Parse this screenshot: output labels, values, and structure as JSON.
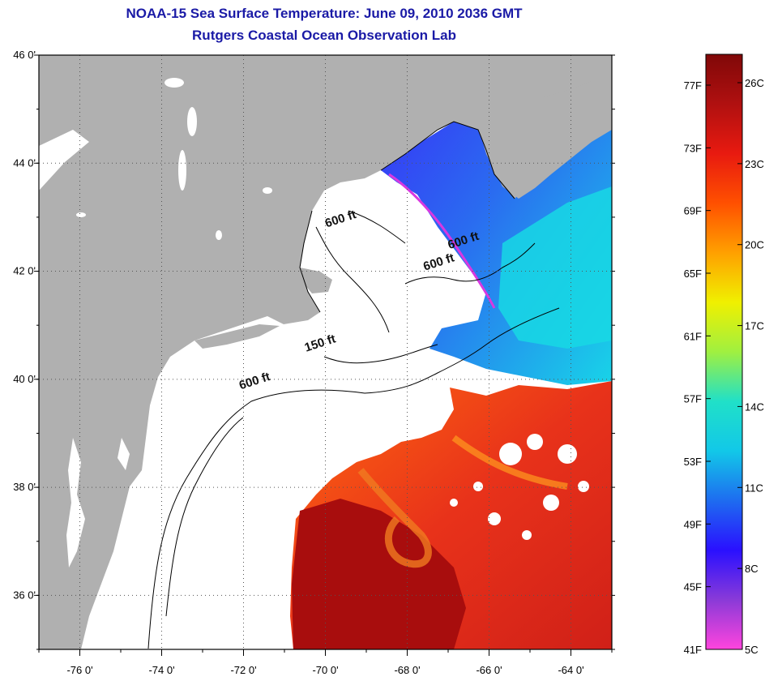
{
  "header": {
    "title": "NOAA-15 Sea Surface Temperature:  June 09, 2010 2036 GMT",
    "subtitle": "Rutgers Coastal Ocean Observation Lab"
  },
  "map": {
    "lon_range": [
      -77,
      -63
    ],
    "lat_range": [
      35,
      46
    ],
    "lon_ticks": [
      {
        "value": -76,
        "label": "-76 0'"
      },
      {
        "value": -74,
        "label": "-74 0'"
      },
      {
        "value": -72,
        "label": "-72 0'"
      },
      {
        "value": -70,
        "label": "-70 0'"
      },
      {
        "value": -68,
        "label": "-68 0'"
      },
      {
        "value": -66,
        "label": "-66 0'"
      },
      {
        "value": -64,
        "label": "-64 0'"
      }
    ],
    "lat_ticks": [
      {
        "value": 46,
        "label": "46 0'"
      },
      {
        "value": 44,
        "label": "44 0'"
      },
      {
        "value": 42,
        "label": "42 0'"
      },
      {
        "value": 40,
        "label": "40 0'"
      },
      {
        "value": 38,
        "label": "38 0'"
      },
      {
        "value": 36,
        "label": "36 0'"
      }
    ],
    "gridlines": true,
    "colors": {
      "land": "#b0b0b0",
      "ocean_no_data": "#ffffff",
      "warm_water": "#e23a12",
      "gulf_stream_core": "#a80d0d",
      "cold_water": "#2d5cf0",
      "shelf_water": "#10d8e8"
    },
    "depth_labels": [
      {
        "text": "600 ft",
        "lon": -69.6,
        "lat": 42.9
      },
      {
        "text": "600 ft",
        "lon": -66.6,
        "lat": 42.5
      },
      {
        "text": "600 ft",
        "lon": -67.2,
        "lat": 42.1
      },
      {
        "text": "150 ft",
        "lon": -70.1,
        "lat": 40.6
      },
      {
        "text": "600 ft",
        "lon": -71.7,
        "lat": 39.9
      }
    ]
  },
  "colorbar": {
    "f_labels": [
      "77F",
      "73F",
      "69F",
      "65F",
      "61F",
      "57F",
      "53F",
      "49F",
      "45F",
      "41F"
    ],
    "c_labels": [
      "26C",
      "23C",
      "20C",
      "17C",
      "14C",
      "11C",
      "8C",
      "5C"
    ],
    "colors": [
      "#ff44dd",
      "#8a3ad8",
      "#2a10ff",
      "#1e6cf0",
      "#12c8e8",
      "#20e0c8",
      "#a0f040",
      "#f0f000",
      "#ffa000",
      "#ff5000",
      "#e81a10",
      "#b01010",
      "#800808"
    ]
  }
}
